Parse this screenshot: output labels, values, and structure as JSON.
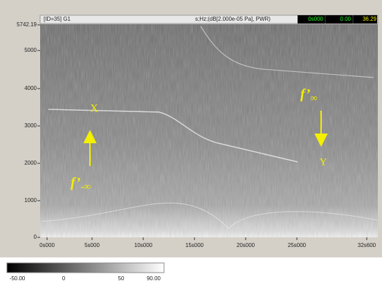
{
  "header": {
    "title": "[ID=35] G1",
    "units": "s;Hz;(dB[2.000e-05 Pa], PWR)",
    "readouts": [
      "0s000",
      "0.00",
      "36.29"
    ]
  },
  "y_axis": {
    "ticks": [
      "5742.19",
      "5000",
      "4000",
      "3000",
      "2000",
      "1000",
      "0"
    ]
  },
  "x_axis": {
    "ticks": [
      "0s000",
      "5s000",
      "10s000",
      "15s000",
      "20s000",
      "25s000",
      "32s600"
    ]
  },
  "annotations": [
    {
      "symbol": "X"
    },
    {
      "symbol": "f’",
      "subscript": "-∞"
    },
    {
      "symbol": "f’",
      "subscript": "∞"
    },
    {
      "symbol": "Y"
    }
  ],
  "colorbar": {
    "ticks": [
      "-50.00",
      "0",
      "50",
      "90.00"
    ]
  }
}
